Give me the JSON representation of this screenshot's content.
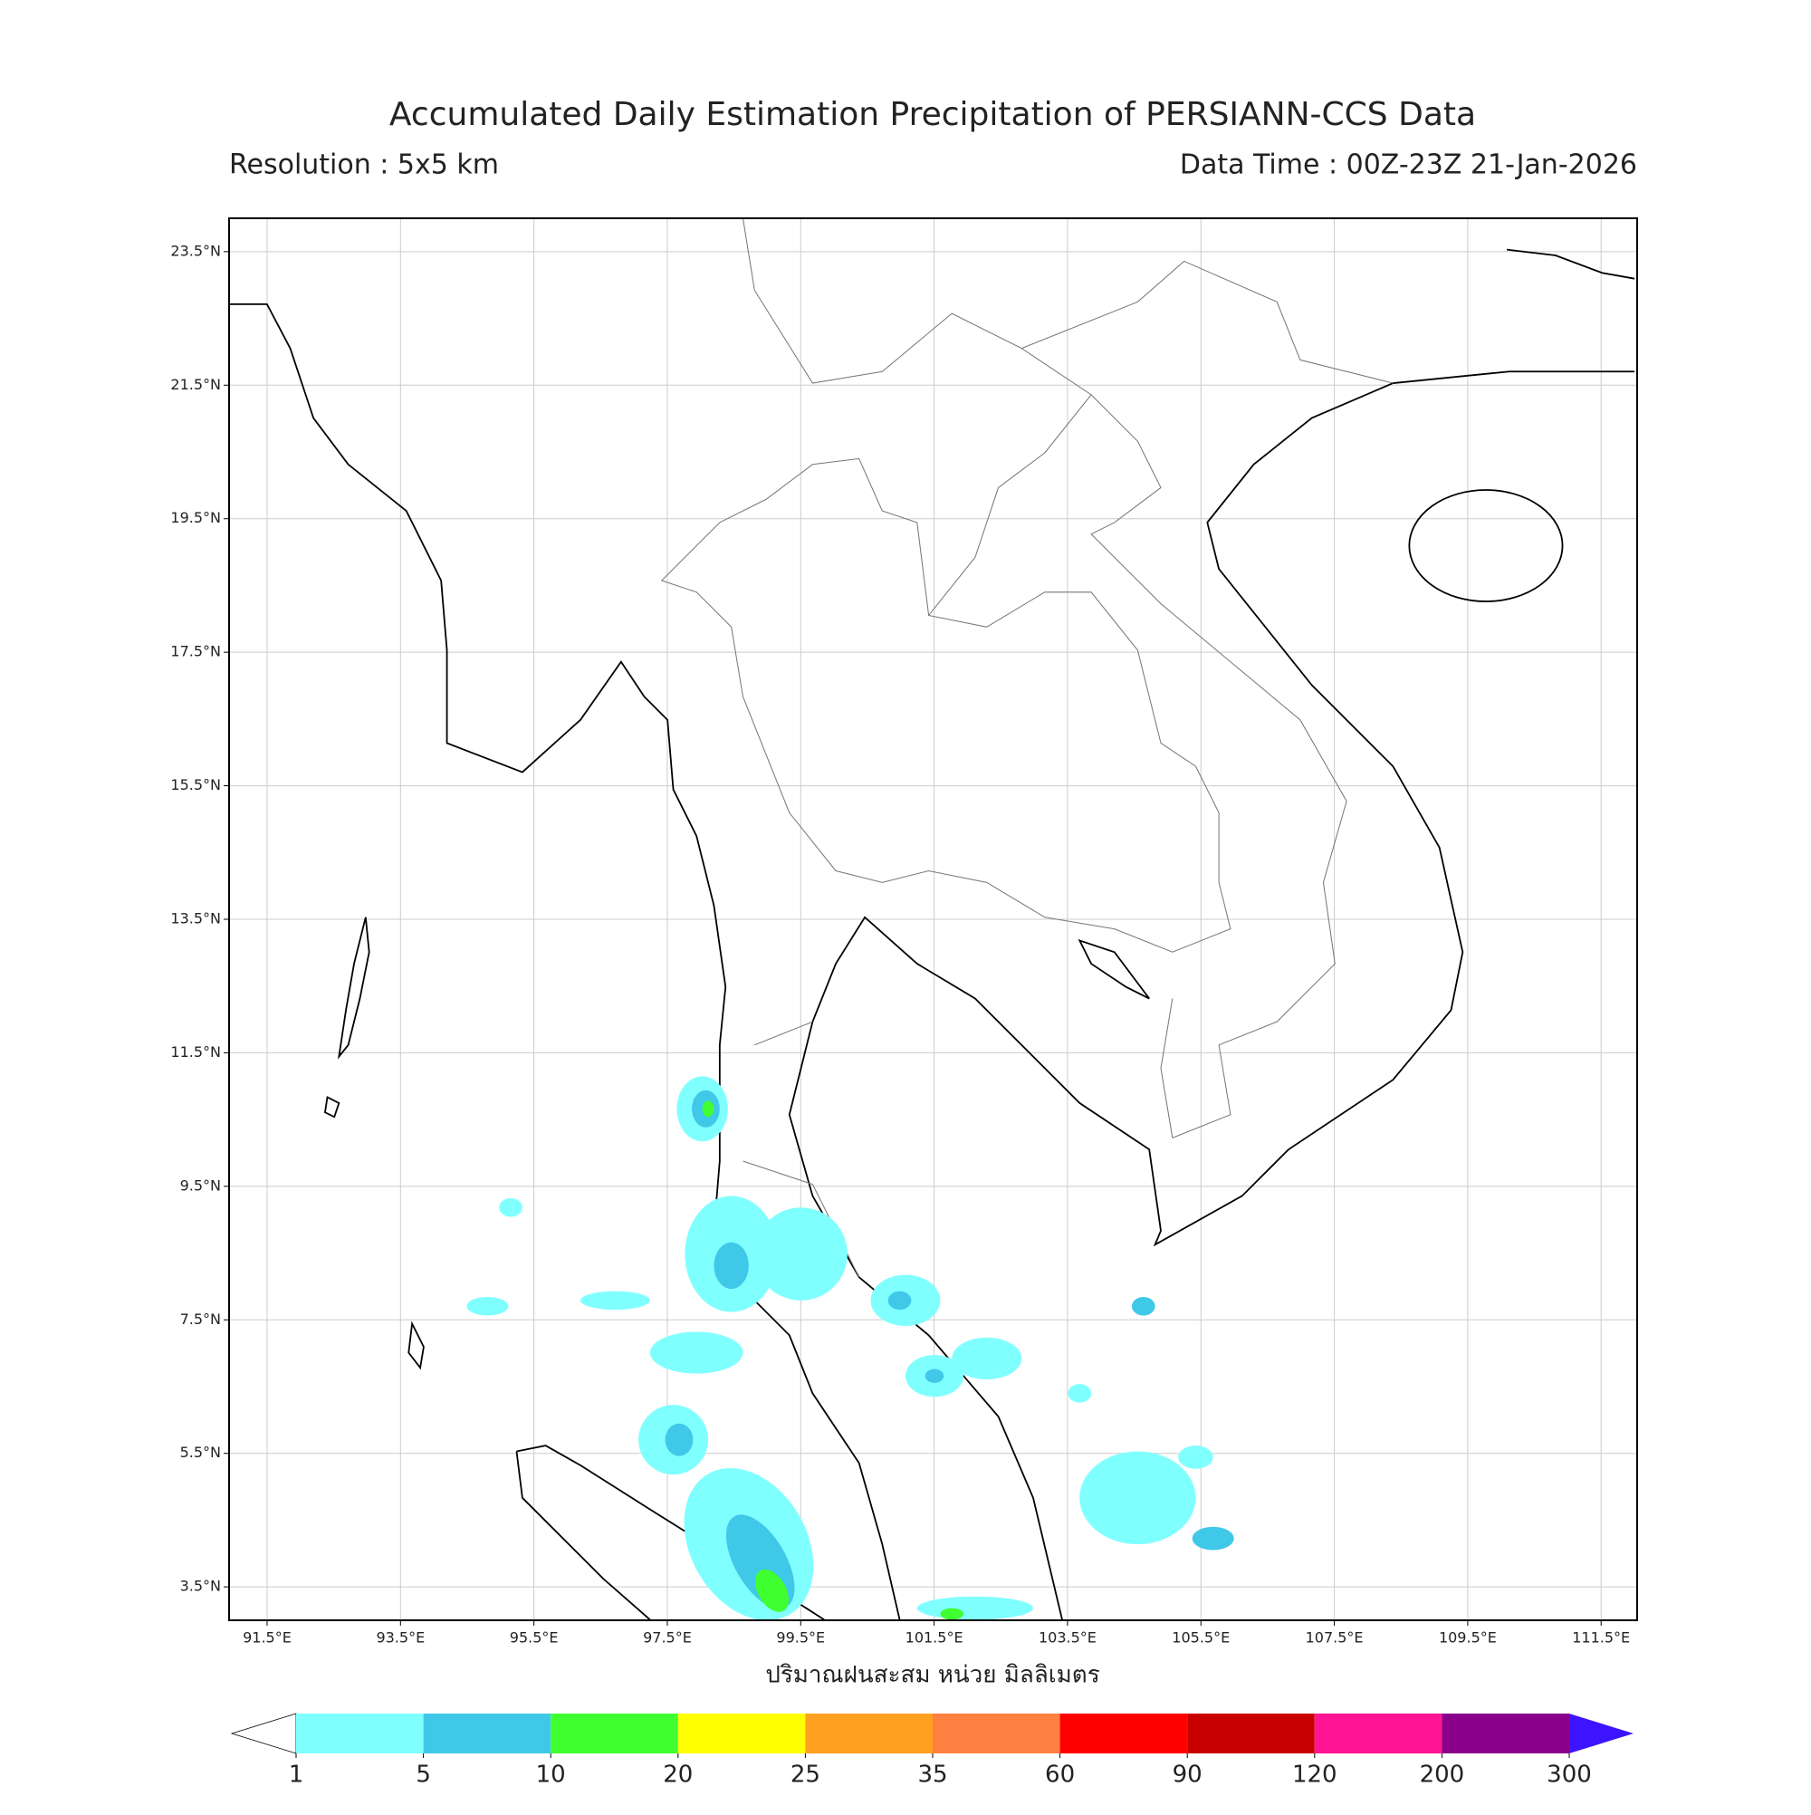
{
  "title": "Accumulated Daily Estimation Precipitation of PERSIANN-CCS Data",
  "resolution": "Resolution : 5x5 km",
  "data_time": "Data Time : 00Z-23Z 21-Jan-2026",
  "map": {
    "lon_range": [
      90.93,
      112.04
    ],
    "lat_range": [
      3.0,
      24.0
    ],
    "lon_ticks": [
      {
        "value": 91.5,
        "label": "91.5°E"
      },
      {
        "value": 93.5,
        "label": "93.5°E"
      },
      {
        "value": 95.5,
        "label": "95.5°E"
      },
      {
        "value": 97.5,
        "label": "97.5°E"
      },
      {
        "value": 99.5,
        "label": "99.5°E"
      },
      {
        "value": 101.5,
        "label": "101.5°E"
      },
      {
        "value": 103.5,
        "label": "103.5°E"
      },
      {
        "value": 105.5,
        "label": "105.5°E"
      },
      {
        "value": 107.5,
        "label": "107.5°E"
      },
      {
        "value": 109.5,
        "label": "109.5°E"
      },
      {
        "value": 111.5,
        "label": "111.5°E"
      }
    ],
    "lat_ticks": [
      {
        "value": 23.5,
        "label": "23.5°N"
      },
      {
        "value": 21.5,
        "label": "21.5°N"
      },
      {
        "value": 19.5,
        "label": "19.5°N"
      },
      {
        "value": 17.5,
        "label": "17.5°N"
      },
      {
        "value": 15.5,
        "label": "15.5°N"
      },
      {
        "value": 13.5,
        "label": "13.5°N"
      },
      {
        "value": 11.5,
        "label": "11.5°N"
      },
      {
        "value": 9.5,
        "label": "9.5°N"
      },
      {
        "value": 7.5,
        "label": "7.5°N"
      },
      {
        "value": 5.5,
        "label": "5.5°N"
      },
      {
        "value": 3.5,
        "label": "3.5°N"
      }
    ]
  },
  "colorbar": {
    "label": "ปริมาณฝนสะสม หน่วย มิลลิเมตร",
    "levels": [
      1,
      5,
      10,
      20,
      25,
      35,
      60,
      90,
      120,
      200,
      300
    ],
    "colors": [
      "#80ffff",
      "#40c8e8",
      "#40ff30",
      "#ffff00",
      "#ffa020",
      "#ff8040",
      "#ff0000",
      "#c80000",
      "#ff1493",
      "#8b008b"
    ],
    "over_color": "#3c14ff",
    "under_color": "#ffffff"
  }
}
